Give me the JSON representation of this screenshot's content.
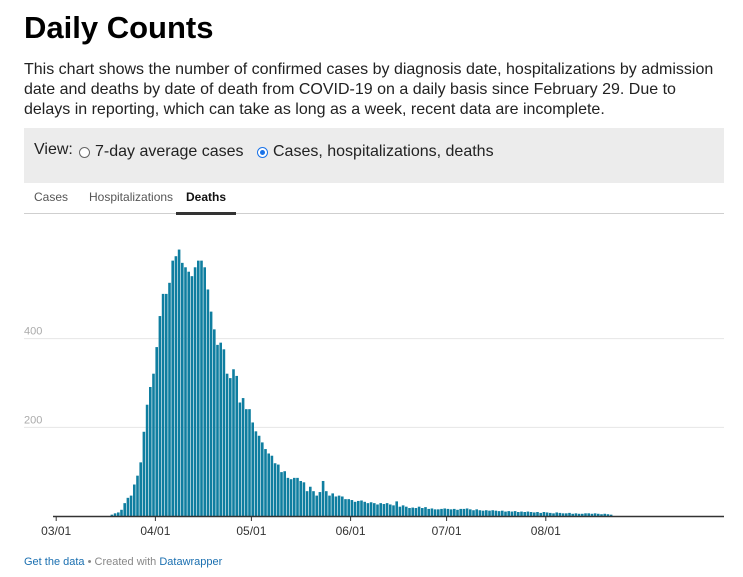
{
  "header": {
    "title": "Daily Counts",
    "description": "This chart shows the number of confirmed cases by diagnosis date, hospitalizations by admission date and deaths by date of death from COVID-19 on a daily basis since February 29. Due to delays in reporting, which can take as long as a week, recent data are incomplete."
  },
  "view": {
    "label": "View:",
    "options": [
      "7-day average cases",
      "Cases, hospitalizations, deaths"
    ],
    "selected": "Cases, hospitalizations, deaths"
  },
  "tabs": [
    {
      "label": "Cases",
      "active": false
    },
    {
      "label": "Hospitalizations",
      "active": false
    },
    {
      "label": "Deaths",
      "active": true
    }
  ],
  "footer": {
    "get_data": "Get the data",
    "created_with": " • Created with ",
    "datawrapper": "Datawrapper"
  },
  "colors": {
    "bar": "#0f7ea0",
    "grid": "#e6e6e6",
    "axis": "#333333",
    "tick": "#aaaaaa"
  },
  "chart_data": {
    "type": "bar",
    "x_start": "2020-02-29",
    "x_ticks": [
      "03/01",
      "04/01",
      "05/01",
      "06/01",
      "07/01",
      "08/01"
    ],
    "y_ticks": [
      200,
      400
    ],
    "ylim": [
      0,
      600
    ],
    "grid": true,
    "values": [
      0,
      0,
      0,
      0,
      0,
      0,
      0,
      0,
      0,
      0,
      0,
      0,
      0,
      0,
      0,
      0,
      0,
      0,
      3,
      6,
      8,
      14,
      29,
      41,
      46,
      71,
      91,
      121,
      190,
      251,
      291,
      321,
      381,
      451,
      501,
      501,
      526,
      576,
      586,
      601,
      571,
      561,
      551,
      541,
      561,
      576,
      576,
      561,
      511,
      461,
      421,
      386,
      391,
      376,
      321,
      311,
      331,
      316,
      256,
      266,
      241,
      241,
      211,
      191,
      181,
      166,
      151,
      141,
      136,
      119,
      116,
      99,
      101,
      86,
      83,
      86,
      86,
      79,
      76,
      56,
      66,
      56,
      46,
      54,
      79,
      56,
      46,
      51,
      44,
      46,
      44,
      38,
      38,
      36,
      32,
      34,
      35,
      32,
      29,
      31,
      29,
      26,
      29,
      27,
      29,
      26,
      24,
      33,
      21,
      24,
      21,
      18,
      19,
      18,
      21,
      18,
      20,
      16,
      17,
      15,
      15,
      16,
      17,
      16,
      15,
      16,
      14,
      16,
      16,
      17,
      15,
      13,
      15,
      13,
      12,
      13,
      12,
      13,
      12,
      11,
      12,
      10,
      11,
      10,
      11,
      9,
      10,
      9,
      10,
      9,
      8,
      9,
      7,
      9,
      8,
      7,
      6,
      8,
      7,
      6,
      6,
      7,
      5,
      6,
      5,
      5,
      6,
      6,
      5,
      6,
      5,
      4,
      5,
      4,
      3
    ]
  }
}
